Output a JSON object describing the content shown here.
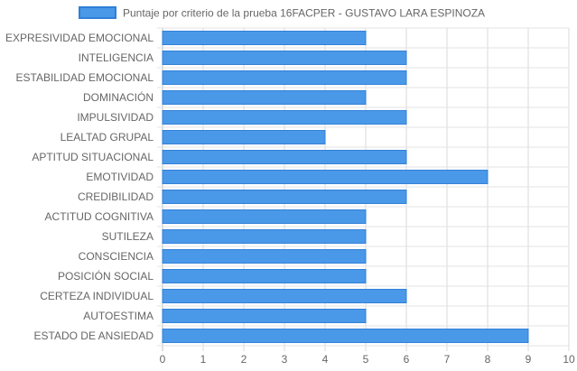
{
  "chart_data": {
    "type": "bar",
    "orientation": "horizontal",
    "categories": [
      "EXPRESIVIDAD EMOCIONAL",
      "INTELIGENCIA",
      "ESTABILIDAD EMOCIONAL",
      "DOMINACIÓN",
      "IMPULSIVIDAD",
      "LEALTAD GRUPAL",
      "APTITUD SITUACIONAL",
      "EMOTIVIDAD",
      "CREDIBILIDAD",
      "ACTITUD COGNITIVA",
      "SUTILEZA",
      "CONSCIENCIA",
      "POSICIÓN SOCIAL",
      "CERTEZA INDIVIDUAL",
      "AUTOESTIMA",
      "ESTADO DE ANSIEDAD"
    ],
    "series": [
      {
        "name": "Puntaje por criterio de la prueba 16FACPER - GUSTAVO LARA ESPINOZA",
        "color": "#4a98e8",
        "border_color": "#2f7fd8",
        "values": [
          5,
          6,
          6,
          5,
          6,
          4,
          6,
          8,
          6,
          5,
          5,
          5,
          5,
          6,
          5,
          9
        ]
      }
    ],
    "xlim": [
      0,
      10
    ],
    "x_ticks": [
      "0",
      "1",
      "2",
      "3",
      "4",
      "5",
      "6",
      "7",
      "8",
      "9",
      "10"
    ],
    "grid": true,
    "legend_position": "top"
  }
}
